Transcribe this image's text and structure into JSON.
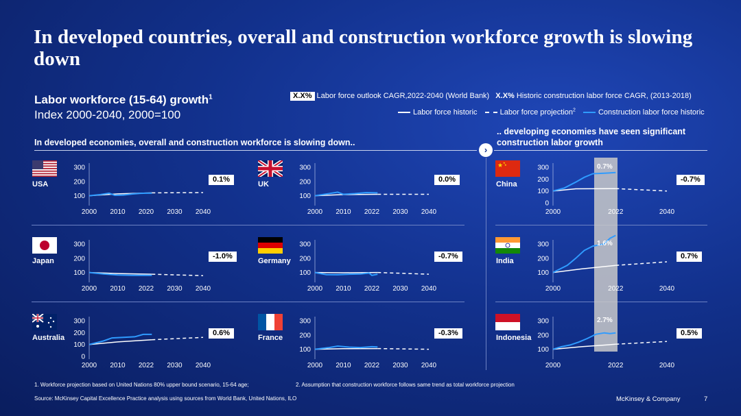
{
  "title": "In developed countries, overall and construction workforce growth is slowing down",
  "subtitle": "Labor workforce (15-64) growth",
  "subtitle_sup": "1",
  "index_note": "Index 2000-2040, 2000=100",
  "legend": {
    "tag_box": "X.X%",
    "tag_box_label": "Labor force outlook CAGR,2022-2040 (World Bank)",
    "tag_bold": "X.X%",
    "tag_bold_label": "Historic construction labor force CAGR, (2013-2018)",
    "historic": "Labor force historic",
    "projection": "Labor force projection",
    "projection_sup": "2",
    "construction": "Construction labor force historic"
  },
  "section_left": "In developed economies, overall and construction workforce is slowing down..",
  "section_right": ".. developing economies have seen significant construction labor growth",
  "footnote1": "1.   Workforce projection based on United Nations 80% upper bound scenario, 15-64 age;",
  "footnote2": "2.   Assumption that construction workforce follows same trend as total workforce projection",
  "source": "Source: McKinsey Capital Excellence Practice analysis using sources from World Bank, United Nations, ILO",
  "brand": "McKinsey & Company",
  "page_number": "7",
  "colors": {
    "construction": "#2f9bff",
    "labor": "#ffffff"
  },
  "chart_data": [
    {
      "country": "USA",
      "flag": "us-flag",
      "type": "line",
      "badge": "0.1%",
      "y_ticks": [
        "300",
        "200",
        "100"
      ],
      "x_ticks": [
        "2000",
        "2010",
        "2020",
        "2030",
        "2040"
      ],
      "labor_historic": [
        [
          2000,
          100
        ],
        [
          2010,
          113
        ],
        [
          2022,
          120
        ]
      ],
      "labor_projection": [
        [
          2022,
          120
        ],
        [
          2040,
          122
        ]
      ],
      "construction": [
        [
          2000,
          100
        ],
        [
          2004,
          108
        ],
        [
          2007,
          118
        ],
        [
          2009,
          103
        ],
        [
          2012,
          105
        ],
        [
          2015,
          112
        ],
        [
          2018,
          117
        ],
        [
          2020,
          118
        ],
        [
          2022,
          118
        ]
      ]
    },
    {
      "country": "UK",
      "flag": "uk-flag",
      "type": "line",
      "badge": "0.0%",
      "y_ticks": [
        "300",
        "200",
        "100"
      ],
      "x_ticks": [
        "2000",
        "2010",
        "2022",
        "2030",
        "2040"
      ],
      "labor_historic": [
        [
          2000,
          100
        ],
        [
          2010,
          108
        ],
        [
          2022,
          110
        ]
      ],
      "labor_projection": [
        [
          2022,
          110
        ],
        [
          2040,
          110
        ]
      ],
      "construction": [
        [
          2000,
          100
        ],
        [
          2004,
          112
        ],
        [
          2008,
          125
        ],
        [
          2010,
          110
        ],
        [
          2014,
          115
        ],
        [
          2018,
          122
        ],
        [
          2022,
          120
        ]
      ]
    },
    {
      "country": "Japan",
      "flag": "japan-flag",
      "type": "line",
      "badge": "-1.0%",
      "y_ticks": [
        "300",
        "200",
        "100"
      ],
      "x_ticks": [
        "2000",
        "2010",
        "2022",
        "2030",
        "2040"
      ],
      "labor_historic": [
        [
          2000,
          100
        ],
        [
          2010,
          93
        ],
        [
          2022,
          88
        ]
      ],
      "labor_projection": [
        [
          2022,
          88
        ],
        [
          2040,
          78
        ]
      ],
      "construction": [
        [
          2000,
          100
        ],
        [
          2005,
          90
        ],
        [
          2010,
          82
        ],
        [
          2015,
          80
        ],
        [
          2022,
          80
        ]
      ]
    },
    {
      "country": "Germany",
      "flag": "germany-flag",
      "type": "line",
      "badge": "-0.7%",
      "y_ticks": [
        "300",
        "200",
        "100"
      ],
      "x_ticks": [
        "2000",
        "2010",
        "2022",
        "2030",
        "2040"
      ],
      "labor_historic": [
        [
          2000,
          100
        ],
        [
          2010,
          98
        ],
        [
          2022,
          100
        ]
      ],
      "labor_projection": [
        [
          2022,
          100
        ],
        [
          2040,
          88
        ]
      ],
      "construction": [
        [
          2000,
          100
        ],
        [
          2004,
          85
        ],
        [
          2008,
          84
        ],
        [
          2012,
          88
        ],
        [
          2016,
          90
        ],
        [
          2019,
          96
        ],
        [
          2020,
          80
        ],
        [
          2022,
          88
        ]
      ]
    },
    {
      "country": "Australia",
      "flag": "australia-flag",
      "type": "line",
      "badge": "0.6%",
      "y_ticks": [
        "300",
        "200",
        "100",
        "0"
      ],
      "x_ticks": [
        "2000",
        "2010",
        "2022",
        "2030",
        "2040"
      ],
      "labor_historic": [
        [
          2000,
          100
        ],
        [
          2010,
          122
        ],
        [
          2022,
          140
        ]
      ],
      "labor_projection": [
        [
          2022,
          140
        ],
        [
          2040,
          160
        ]
      ],
      "construction": [
        [
          2000,
          100
        ],
        [
          2005,
          130
        ],
        [
          2008,
          155
        ],
        [
          2012,
          160
        ],
        [
          2016,
          165
        ],
        [
          2019,
          185
        ],
        [
          2022,
          185
        ]
      ]
    },
    {
      "country": "France",
      "flag": "france-flag",
      "type": "line",
      "badge": "-0.3%",
      "y_ticks": [
        "300",
        "200",
        "100"
      ],
      "x_ticks": [
        "2000",
        "2010",
        "2022",
        "2030",
        "2040"
      ],
      "labor_historic": [
        [
          2000,
          100
        ],
        [
          2010,
          104
        ],
        [
          2022,
          105
        ]
      ],
      "labor_projection": [
        [
          2022,
          105
        ],
        [
          2040,
          100
        ]
      ],
      "construction": [
        [
          2000,
          100
        ],
        [
          2005,
          112
        ],
        [
          2008,
          122
        ],
        [
          2012,
          115
        ],
        [
          2016,
          112
        ],
        [
          2020,
          118
        ],
        [
          2022,
          116
        ]
      ]
    },
    {
      "country": "China",
      "flag": "china-flag",
      "type": "line",
      "badge": "-0.7%",
      "highlight": "0.7%",
      "y_ticks": [
        "300",
        "200",
        "100",
        "0"
      ],
      "x_ticks": [
        "2000",
        "2022",
        "2040"
      ],
      "labor_historic": [
        [
          2000,
          100
        ],
        [
          2008,
          118
        ],
        [
          2022,
          120
        ]
      ],
      "labor_projection": [
        [
          2022,
          120
        ],
        [
          2040,
          100
        ]
      ],
      "construction": [
        [
          2000,
          100
        ],
        [
          2004,
          125
        ],
        [
          2008,
          175
        ],
        [
          2011,
          215
        ],
        [
          2014,
          245
        ],
        [
          2018,
          250
        ],
        [
          2022,
          255
        ]
      ]
    },
    {
      "country": "India",
      "flag": "india-flag",
      "type": "line",
      "badge": "0.7%",
      "highlight": "1.6%",
      "y_ticks": [
        "300",
        "200",
        "100"
      ],
      "x_ticks": [
        "2000",
        "2022",
        "2040"
      ],
      "labor_historic": [
        [
          2000,
          100
        ],
        [
          2010,
          125
        ],
        [
          2022,
          150
        ]
      ],
      "labor_projection": [
        [
          2022,
          150
        ],
        [
          2040,
          175
        ]
      ],
      "construction": [
        [
          2000,
          100
        ],
        [
          2005,
          150
        ],
        [
          2008,
          200
        ],
        [
          2011,
          255
        ],
        [
          2014,
          285
        ],
        [
          2018,
          300
        ],
        [
          2020,
          340
        ],
        [
          2022,
          360
        ]
      ]
    },
    {
      "country": "Indonesia",
      "flag": "indonesia-flag",
      "type": "line",
      "badge": "0.5%",
      "highlight": "2.7%",
      "y_ticks": [
        "300",
        "200",
        "100"
      ],
      "x_ticks": [
        "2000",
        "2022",
        "2040"
      ],
      "labor_historic": [
        [
          2000,
          100
        ],
        [
          2010,
          118
        ],
        [
          2022,
          135
        ]
      ],
      "labor_projection": [
        [
          2022,
          135
        ],
        [
          2040,
          155
        ]
      ],
      "construction": [
        [
          2000,
          100
        ],
        [
          2003,
          118
        ],
        [
          2006,
          130
        ],
        [
          2009,
          150
        ],
        [
          2012,
          175
        ],
        [
          2015,
          205
        ],
        [
          2018,
          215
        ],
        [
          2020,
          210
        ],
        [
          2022,
          215
        ]
      ]
    }
  ]
}
